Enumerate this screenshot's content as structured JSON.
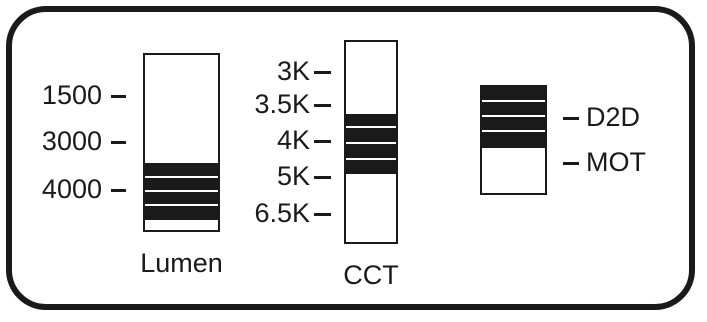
{
  "lumen": {
    "caption": "Lumen",
    "ticks": [
      "1500",
      "3000",
      "4000"
    ]
  },
  "cct": {
    "caption": "CCT",
    "ticks": [
      "3K",
      "3.5K",
      "4K",
      "5K",
      "6.5K"
    ]
  },
  "mode": {
    "ticks": [
      "D2D",
      "MOT"
    ]
  },
  "colors": {
    "ink": "#1a1a1a",
    "background": "#ffffff"
  }
}
